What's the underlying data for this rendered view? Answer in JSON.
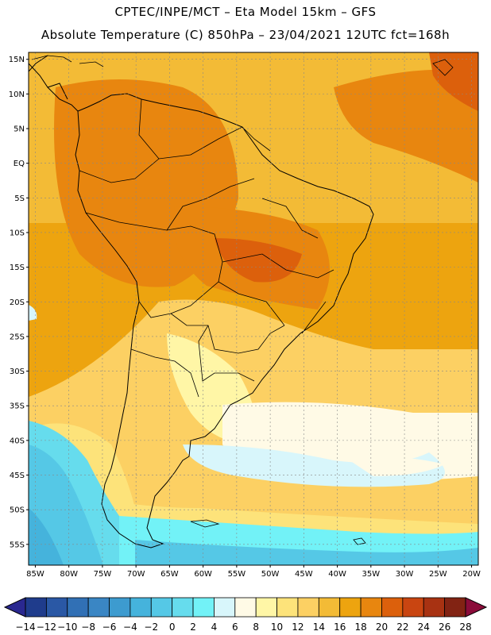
{
  "header": {
    "line1": "CPTEC/INPE/MCT –  Eta Model 15km – GFS",
    "line2": "Absolute Temperature (C) 850hPa – 23/04/2021 12UTC fct=168h"
  },
  "map": {
    "lat_labels": [
      "15N",
      "10N",
      "5N",
      "EQ",
      "5S",
      "10S",
      "15S",
      "20S",
      "25S",
      "30S",
      "35S",
      "40S",
      "45S",
      "50S",
      "55S"
    ],
    "lon_labels": [
      "85W",
      "80W",
      "75W",
      "70W",
      "65W",
      "60W",
      "55W",
      "50W",
      "45W",
      "40W",
      "35W",
      "30W",
      "25W",
      "20W"
    ],
    "lat_values": [
      15,
      10,
      5,
      0,
      -5,
      -10,
      -15,
      -20,
      -25,
      -30,
      -35,
      -40,
      -45,
      -50,
      -55
    ],
    "lon_values": [
      -85,
      -80,
      -75,
      -70,
      -65,
      -60,
      -55,
      -50,
      -45,
      -40,
      -35,
      -30,
      -25,
      -20
    ],
    "lat_range": [
      -58,
      16
    ],
    "lon_range": [
      -86,
      -19
    ],
    "gridlines": true
  },
  "colorbar": {
    "labels": [
      "-14",
      "-12",
      "-10",
      "-8",
      "-6",
      "-4",
      "-2",
      "0",
      "2",
      "4",
      "6",
      "8",
      "10",
      "12",
      "14",
      "16",
      "18",
      "20",
      "22",
      "24",
      "26",
      "28"
    ],
    "colors": [
      "#1f3c8c",
      "#2a58a5",
      "#3170b5",
      "#3a86c4",
      "#3d9bcf",
      "#45b3dc",
      "#55c8e6",
      "#66dced",
      "#72f2f7",
      "#d8f6fb",
      "#fffae6",
      "#fff6a6",
      "#fde37a",
      "#fcd063",
      "#f3bb36",
      "#eda40f",
      "#e8860f",
      "#dc600c",
      "#c94511",
      "#a83212",
      "#822313"
    ]
  }
}
